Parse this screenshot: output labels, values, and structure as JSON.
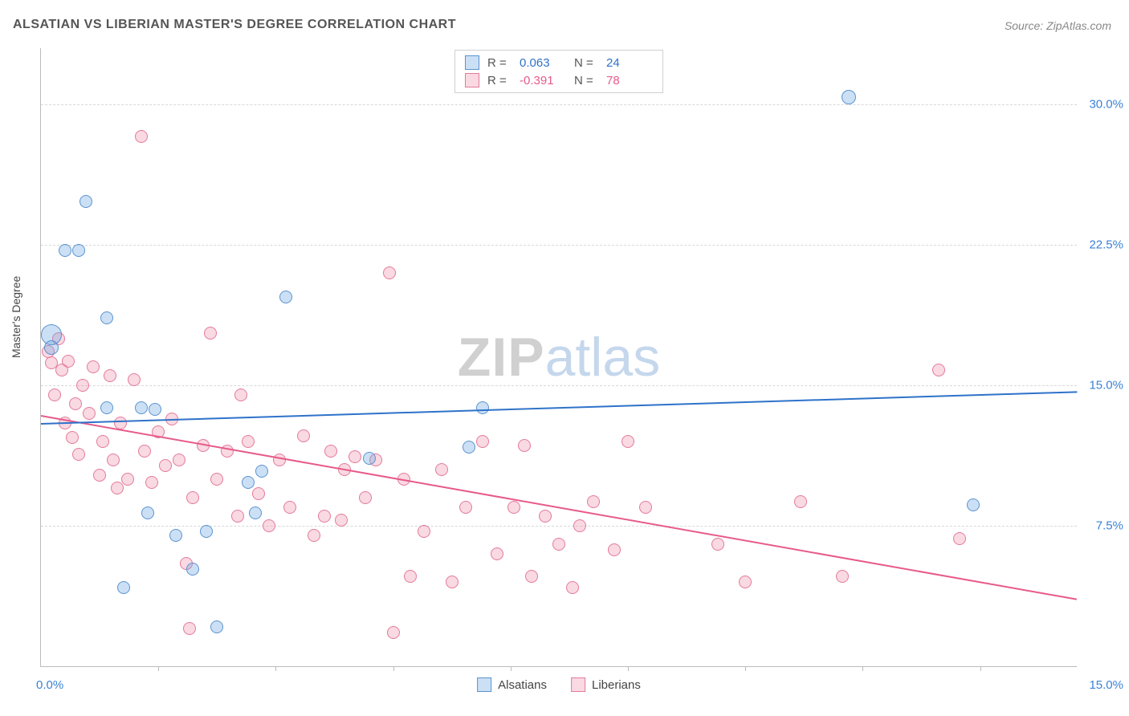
{
  "title": "ALSATIAN VS LIBERIAN MASTER'S DEGREE CORRELATION CHART",
  "source_label": "Source: ZipAtlas.com",
  "y_axis_title": "Master's Degree",
  "watermark": {
    "part1": "ZIP",
    "part2": "atlas"
  },
  "x_axis": {
    "min": 0,
    "max": 15,
    "label_left": "0.0%",
    "label_right": "15.0%",
    "ticks": [
      1.7,
      3.4,
      5.1,
      6.8,
      8.5,
      10.2,
      11.9,
      13.6
    ]
  },
  "y_axis": {
    "min": 0,
    "max": 33,
    "gridlines": [
      {
        "value": 7.5,
        "label": "7.5%"
      },
      {
        "value": 15.0,
        "label": "15.0%"
      },
      {
        "value": 22.5,
        "label": "22.5%"
      },
      {
        "value": 30.0,
        "label": "30.0%"
      }
    ],
    "label_color": "#3b82d6"
  },
  "series": {
    "alsatians": {
      "label": "Alsatians",
      "fill": "rgba(110,165,225,0.35)",
      "stroke": "#5b93cf",
      "line_color": "#2e72c9",
      "R": "0.063",
      "N": "24",
      "trend": {
        "y_at_xmin": 13.0,
        "y_at_xmax": 14.7
      },
      "points": [
        {
          "x": 0.15,
          "y": 17.7,
          "r": 12
        },
        {
          "x": 0.15,
          "y": 17.0,
          "r": 8
        },
        {
          "x": 0.35,
          "y": 22.2,
          "r": 7
        },
        {
          "x": 0.55,
          "y": 22.2,
          "r": 7
        },
        {
          "x": 0.65,
          "y": 24.8,
          "r": 7
        },
        {
          "x": 0.95,
          "y": 18.6,
          "r": 7
        },
        {
          "x": 0.95,
          "y": 13.8,
          "r": 7
        },
        {
          "x": 1.2,
          "y": 4.2,
          "r": 7
        },
        {
          "x": 1.45,
          "y": 13.8,
          "r": 7
        },
        {
          "x": 1.55,
          "y": 8.2,
          "r": 7
        },
        {
          "x": 1.65,
          "y": 13.7,
          "r": 7
        },
        {
          "x": 1.95,
          "y": 7.0,
          "r": 7
        },
        {
          "x": 2.2,
          "y": 5.2,
          "r": 7
        },
        {
          "x": 2.4,
          "y": 7.2,
          "r": 7
        },
        {
          "x": 2.55,
          "y": 2.1,
          "r": 7
        },
        {
          "x": 3.0,
          "y": 9.8,
          "r": 7
        },
        {
          "x": 3.1,
          "y": 8.2,
          "r": 7
        },
        {
          "x": 3.2,
          "y": 10.4,
          "r": 7
        },
        {
          "x": 3.55,
          "y": 19.7,
          "r": 7
        },
        {
          "x": 4.75,
          "y": 11.1,
          "r": 7
        },
        {
          "x": 6.2,
          "y": 11.7,
          "r": 7
        },
        {
          "x": 6.4,
          "y": 13.8,
          "r": 7
        },
        {
          "x": 11.7,
          "y": 30.4,
          "r": 8
        },
        {
          "x": 13.5,
          "y": 8.6,
          "r": 7
        }
      ]
    },
    "liberians": {
      "label": "Liberians",
      "fill": "rgba(235,130,160,0.3)",
      "stroke": "#e47a9a",
      "line_color": "#e75a8a",
      "R": "-0.391",
      "N": "78",
      "trend": {
        "y_at_xmin": 13.4,
        "y_at_xmax": 3.6
      },
      "points": [
        {
          "x": 0.1,
          "y": 16.8,
          "r": 7
        },
        {
          "x": 0.15,
          "y": 16.2,
          "r": 7
        },
        {
          "x": 0.2,
          "y": 14.5,
          "r": 7
        },
        {
          "x": 0.25,
          "y": 17.5,
          "r": 7
        },
        {
          "x": 0.3,
          "y": 15.8,
          "r": 7
        },
        {
          "x": 0.35,
          "y": 13.0,
          "r": 7
        },
        {
          "x": 0.4,
          "y": 16.3,
          "r": 7
        },
        {
          "x": 0.45,
          "y": 12.2,
          "r": 7
        },
        {
          "x": 0.5,
          "y": 14.0,
          "r": 7
        },
        {
          "x": 0.55,
          "y": 11.3,
          "r": 7
        },
        {
          "x": 0.6,
          "y": 15.0,
          "r": 7
        },
        {
          "x": 0.7,
          "y": 13.5,
          "r": 7
        },
        {
          "x": 0.75,
          "y": 16.0,
          "r": 7
        },
        {
          "x": 0.85,
          "y": 10.2,
          "r": 7
        },
        {
          "x": 0.9,
          "y": 12.0,
          "r": 7
        },
        {
          "x": 1.0,
          "y": 15.5,
          "r": 7
        },
        {
          "x": 1.05,
          "y": 11.0,
          "r": 7
        },
        {
          "x": 1.1,
          "y": 9.5,
          "r": 7
        },
        {
          "x": 1.15,
          "y": 13.0,
          "r": 7
        },
        {
          "x": 1.25,
          "y": 10.0,
          "r": 7
        },
        {
          "x": 1.35,
          "y": 15.3,
          "r": 7
        },
        {
          "x": 1.45,
          "y": 28.3,
          "r": 7
        },
        {
          "x": 1.5,
          "y": 11.5,
          "r": 7
        },
        {
          "x": 1.6,
          "y": 9.8,
          "r": 7
        },
        {
          "x": 1.7,
          "y": 12.5,
          "r": 7
        },
        {
          "x": 1.8,
          "y": 10.7,
          "r": 7
        },
        {
          "x": 1.9,
          "y": 13.2,
          "r": 7
        },
        {
          "x": 2.0,
          "y": 11.0,
          "r": 7
        },
        {
          "x": 2.1,
          "y": 5.5,
          "r": 7
        },
        {
          "x": 2.15,
          "y": 2.0,
          "r": 7
        },
        {
          "x": 2.2,
          "y": 9.0,
          "r": 7
        },
        {
          "x": 2.35,
          "y": 11.8,
          "r": 7
        },
        {
          "x": 2.45,
          "y": 17.8,
          "r": 7
        },
        {
          "x": 2.55,
          "y": 10.0,
          "r": 7
        },
        {
          "x": 2.7,
          "y": 11.5,
          "r": 7
        },
        {
          "x": 2.85,
          "y": 8.0,
          "r": 7
        },
        {
          "x": 2.9,
          "y": 14.5,
          "r": 7
        },
        {
          "x": 3.0,
          "y": 12.0,
          "r": 7
        },
        {
          "x": 3.15,
          "y": 9.2,
          "r": 7
        },
        {
          "x": 3.3,
          "y": 7.5,
          "r": 7
        },
        {
          "x": 3.45,
          "y": 11.0,
          "r": 7
        },
        {
          "x": 3.6,
          "y": 8.5,
          "r": 7
        },
        {
          "x": 3.8,
          "y": 12.3,
          "r": 7
        },
        {
          "x": 3.95,
          "y": 7.0,
          "r": 7
        },
        {
          "x": 4.1,
          "y": 8.0,
          "r": 7
        },
        {
          "x": 4.2,
          "y": 11.5,
          "r": 7
        },
        {
          "x": 4.35,
          "y": 7.8,
          "r": 7
        },
        {
          "x": 4.4,
          "y": 10.5,
          "r": 7
        },
        {
          "x": 4.55,
          "y": 11.2,
          "r": 7
        },
        {
          "x": 4.7,
          "y": 9.0,
          "r": 7
        },
        {
          "x": 4.85,
          "y": 11.0,
          "r": 7
        },
        {
          "x": 5.05,
          "y": 21.0,
          "r": 7
        },
        {
          "x": 5.1,
          "y": 1.8,
          "r": 7
        },
        {
          "x": 5.25,
          "y": 10.0,
          "r": 7
        },
        {
          "x": 5.35,
          "y": 4.8,
          "r": 7
        },
        {
          "x": 5.55,
          "y": 7.2,
          "r": 7
        },
        {
          "x": 5.8,
          "y": 10.5,
          "r": 7
        },
        {
          "x": 5.95,
          "y": 4.5,
          "r": 7
        },
        {
          "x": 6.15,
          "y": 8.5,
          "r": 7
        },
        {
          "x": 6.4,
          "y": 12.0,
          "r": 7
        },
        {
          "x": 6.6,
          "y": 6.0,
          "r": 7
        },
        {
          "x": 6.85,
          "y": 8.5,
          "r": 7
        },
        {
          "x": 7.0,
          "y": 11.8,
          "r": 7
        },
        {
          "x": 7.1,
          "y": 4.8,
          "r": 7
        },
        {
          "x": 7.3,
          "y": 8.0,
          "r": 7
        },
        {
          "x": 7.5,
          "y": 6.5,
          "r": 7
        },
        {
          "x": 7.7,
          "y": 4.2,
          "r": 7
        },
        {
          "x": 7.8,
          "y": 7.5,
          "r": 7
        },
        {
          "x": 8.0,
          "y": 8.8,
          "r": 7
        },
        {
          "x": 8.3,
          "y": 6.2,
          "r": 7
        },
        {
          "x": 8.5,
          "y": 12.0,
          "r": 7
        },
        {
          "x": 8.75,
          "y": 8.5,
          "r": 7
        },
        {
          "x": 9.8,
          "y": 6.5,
          "r": 7
        },
        {
          "x": 10.2,
          "y": 4.5,
          "r": 7
        },
        {
          "x": 11.0,
          "y": 8.8,
          "r": 7
        },
        {
          "x": 11.6,
          "y": 4.8,
          "r": 7
        },
        {
          "x": 13.0,
          "y": 15.8,
          "r": 7
        },
        {
          "x": 13.3,
          "y": 6.8,
          "r": 7
        }
      ]
    }
  },
  "legend_top": {
    "r_label": "R =",
    "n_label": "N ="
  }
}
